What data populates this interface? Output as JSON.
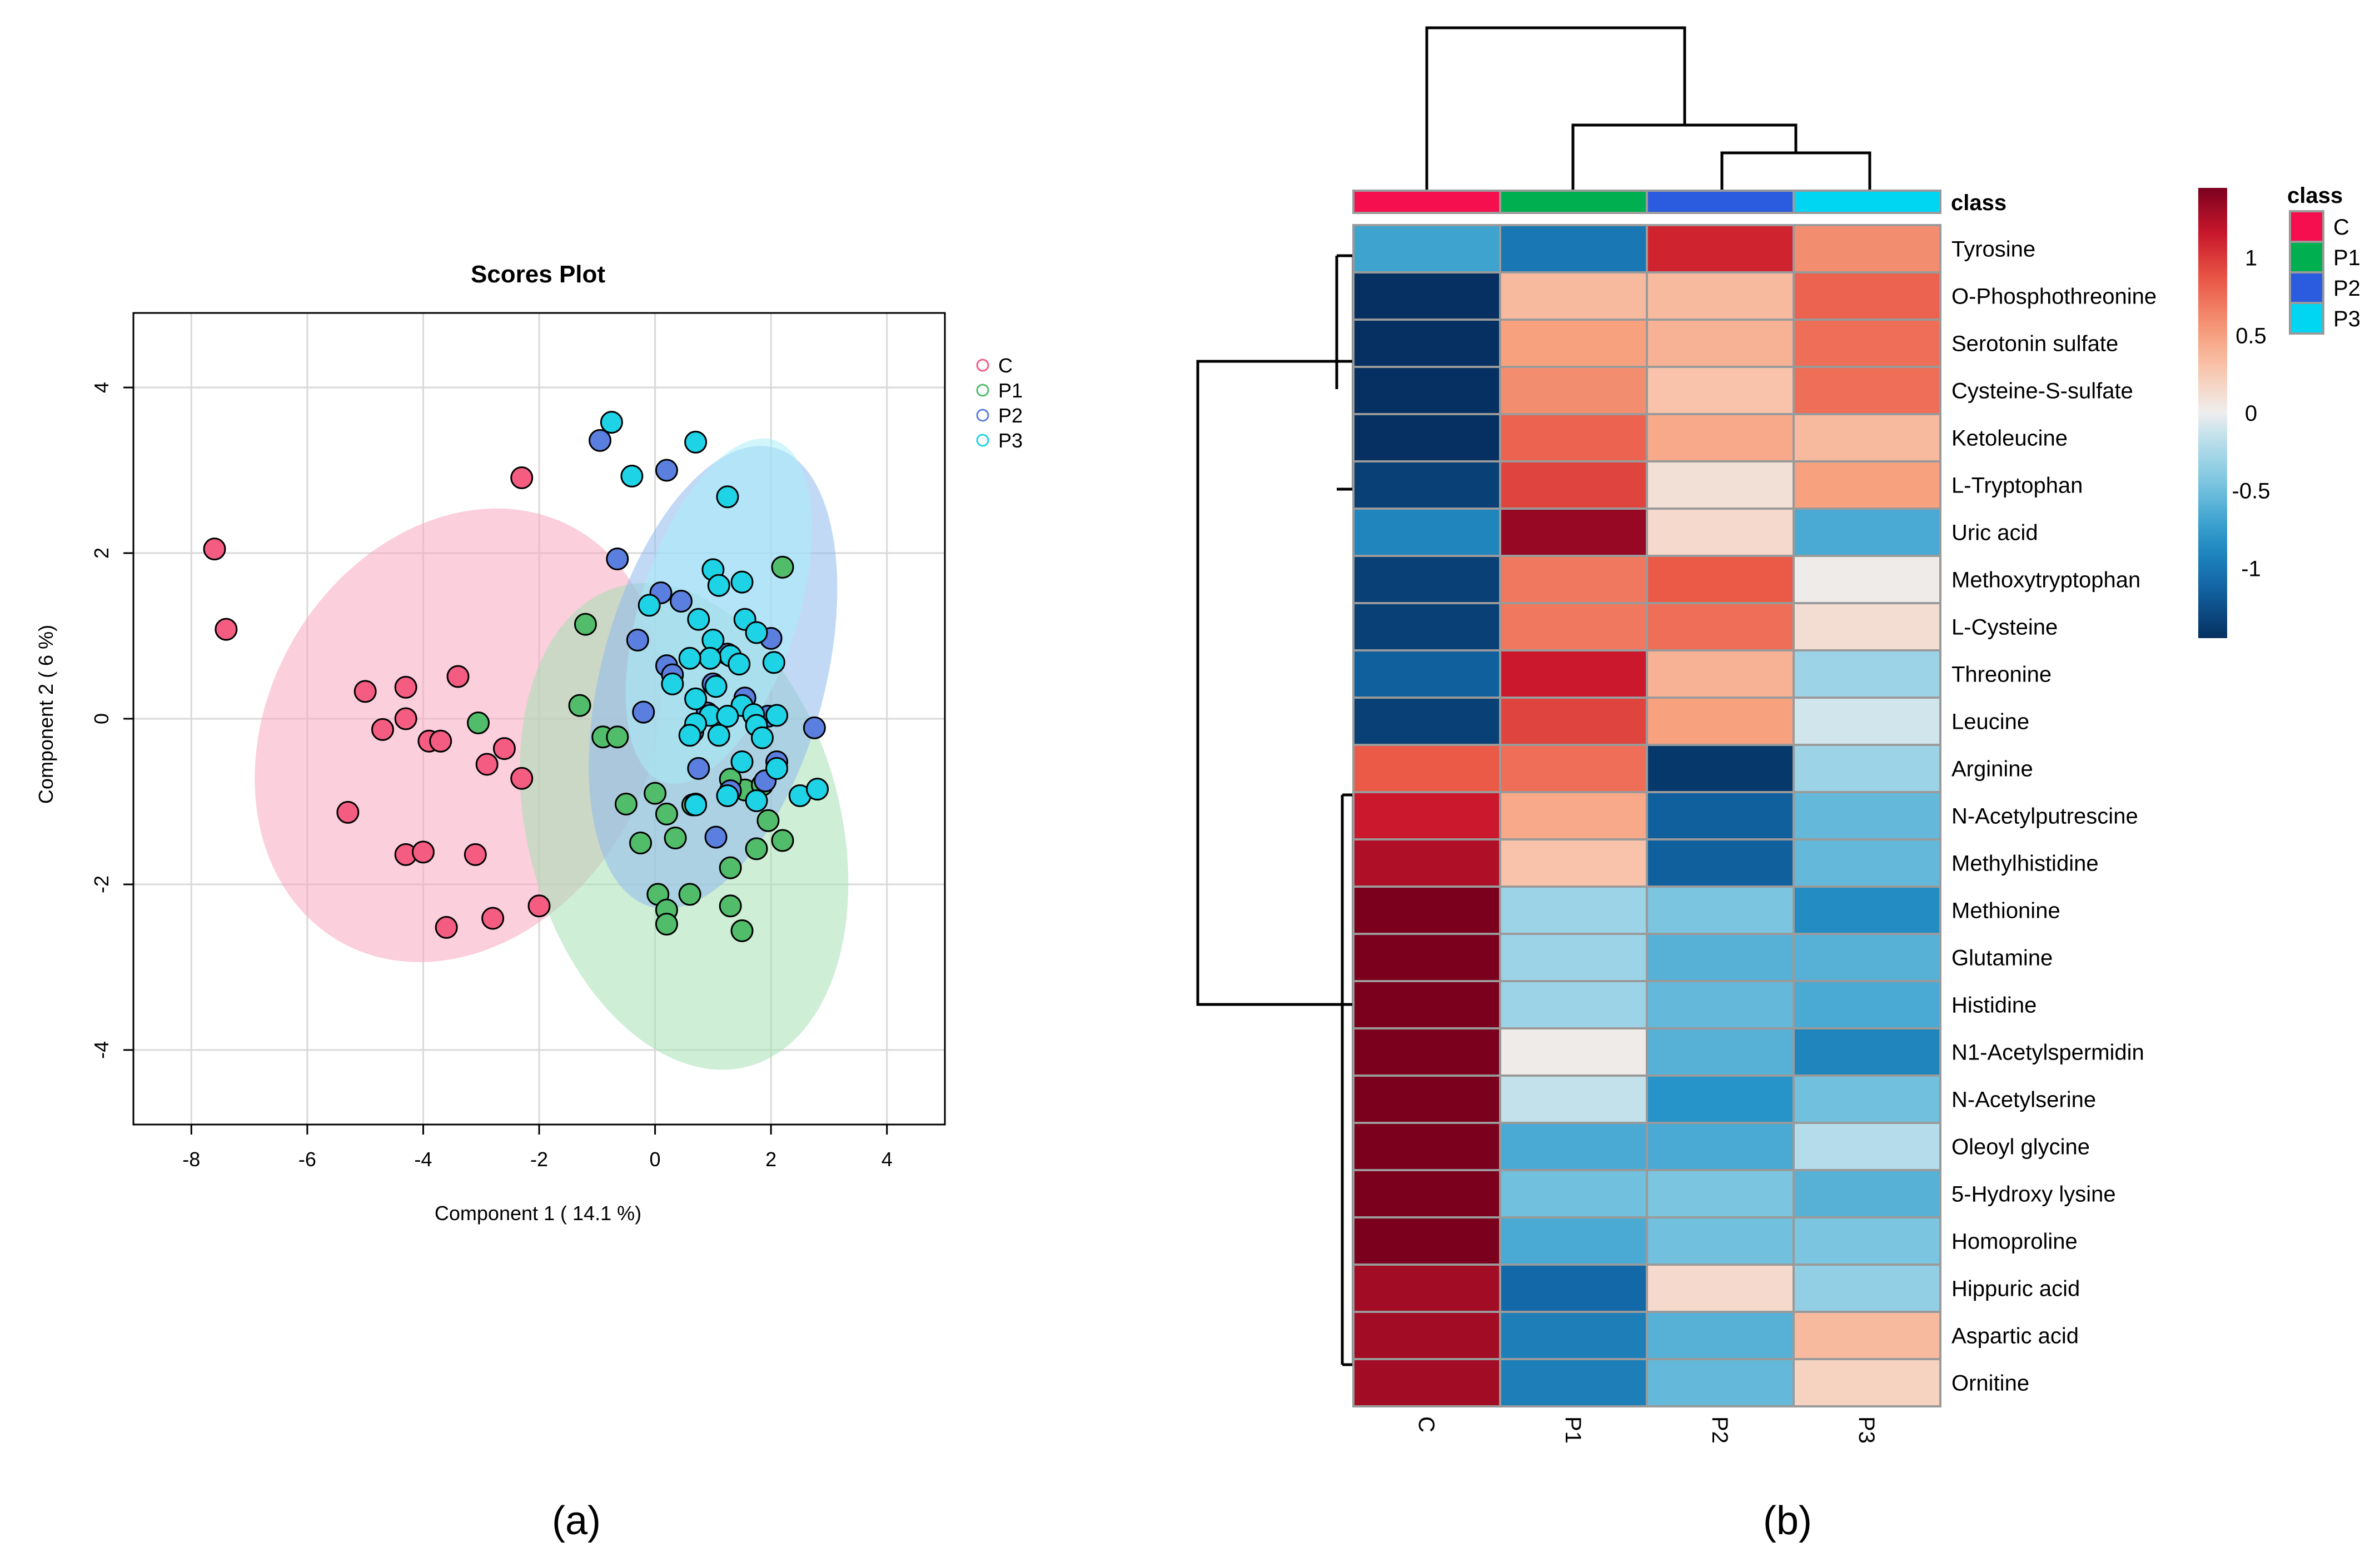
{
  "panel_labels": {
    "a": "(a)",
    "b": "(b)"
  },
  "colors": {
    "C": "#f45d81",
    "P1": "#51bd6b",
    "P2": "#5b7fdf",
    "P3": "#1fd3e6",
    "C_ellipse": "#f7a8bf",
    "P1_ellipse": "#a5e0b4",
    "P2_ellipse": "#8fb9ef",
    "P3_ellipse": "#a9ecf7",
    "class_C": "#f50f4e",
    "class_P1": "#00b050",
    "class_P2": "#2b5ce0",
    "class_P3": "#00d5f2"
  },
  "chart_data": [
    {
      "type": "scatter",
      "title": "Scores Plot",
      "xlabel": "Component 1 ( 14.1 %)",
      "ylabel": "Component 2 ( 6 %)",
      "xlim": [
        -9,
        5
      ],
      "ylim": [
        -4.9,
        4.9
      ],
      "xticks": [
        -8,
        -6,
        -4,
        -2,
        0,
        2,
        4
      ],
      "yticks": [
        -4,
        -2,
        0,
        2,
        4
      ],
      "xtick_labels": [
        "-8",
        "-6",
        "-4",
        "-2",
        "0",
        "2",
        "4"
      ],
      "ytick_labels": [
        "-4",
        "-2",
        "0",
        "2",
        "4"
      ],
      "grid": true,
      "legend_position": "right",
      "legend": [
        "C",
        "P1",
        "P2",
        "P3"
      ],
      "ellipses": [
        {
          "group": "C",
          "cx": -3.4,
          "cy": -0.2,
          "a": 4.1,
          "b": 2.3,
          "angle_deg": -60
        },
        {
          "group": "P1",
          "cx": 0.5,
          "cy": -1.3,
          "a": 2.7,
          "b": 3.0,
          "angle_deg": -15
        },
        {
          "group": "P2",
          "cx": 1.0,
          "cy": 0.5,
          "a": 4.1,
          "b": 1.35,
          "angle_deg": -75
        },
        {
          "group": "P3",
          "cx": 1.1,
          "cy": 1.3,
          "a": 3.1,
          "b": 0.95,
          "angle_deg": -72
        }
      ],
      "series": [
        {
          "name": "C",
          "points": [
            [
              -7.6,
              2.05
            ],
            [
              -7.4,
              1.08
            ],
            [
              -5.0,
              0.33
            ],
            [
              -4.7,
              -0.13
            ],
            [
              -4.3,
              0.38
            ],
            [
              -4.3,
              0.0
            ],
            [
              -3.9,
              -0.27
            ],
            [
              -3.7,
              -0.27
            ],
            [
              -3.4,
              0.51
            ],
            [
              -2.9,
              -0.55
            ],
            [
              -2.6,
              -0.36
            ],
            [
              -2.3,
              -0.72
            ],
            [
              -2.3,
              2.91
            ],
            [
              -5.3,
              -1.13
            ],
            [
              -4.3,
              -1.64
            ],
            [
              -4.0,
              -1.61
            ],
            [
              -3.1,
              -1.64
            ],
            [
              -3.6,
              -2.52
            ],
            [
              -2.8,
              -2.41
            ],
            [
              -2.0,
              -2.26
            ]
          ]
        },
        {
          "name": "P1",
          "points": [
            [
              -3.05,
              -0.05
            ],
            [
              -1.3,
              0.16
            ],
            [
              -1.2,
              1.14
            ],
            [
              -0.9,
              -0.22
            ],
            [
              -0.65,
              -0.22
            ],
            [
              -0.5,
              -1.03
            ],
            [
              -0.25,
              -1.5
            ],
            [
              0.0,
              -0.9
            ],
            [
              0.2,
              -1.15
            ],
            [
              0.35,
              -1.44
            ],
            [
              0.05,
              -2.12
            ],
            [
              0.2,
              -2.31
            ],
            [
              0.2,
              -2.48
            ],
            [
              0.6,
              -2.12
            ],
            [
              1.3,
              -2.26
            ],
            [
              1.5,
              -2.56
            ],
            [
              1.3,
              -1.8
            ],
            [
              1.75,
              -1.57
            ],
            [
              2.2,
              -1.47
            ],
            [
              1.95,
              -1.23
            ],
            [
              1.55,
              -0.86
            ],
            [
              1.3,
              -0.73
            ],
            [
              1.85,
              -0.8
            ],
            [
              0.65,
              -1.04
            ],
            [
              2.2,
              1.83
            ]
          ]
        },
        {
          "name": "P2",
          "points": [
            [
              -0.95,
              3.36
            ],
            [
              0.2,
              3.0
            ],
            [
              -0.65,
              1.93
            ],
            [
              0.1,
              1.52
            ],
            [
              0.45,
              1.42
            ],
            [
              -0.3,
              0.95
            ],
            [
              0.2,
              0.64
            ],
            [
              -0.2,
              0.08
            ],
            [
              0.3,
              0.53
            ],
            [
              0.65,
              -0.16
            ],
            [
              0.9,
              0.07
            ],
            [
              1.0,
              0.42
            ],
            [
              1.25,
              0.78
            ],
            [
              1.55,
              0.25
            ],
            [
              1.95,
              0.03
            ],
            [
              2.0,
              0.97
            ],
            [
              2.75,
              -0.11
            ],
            [
              2.1,
              -0.52
            ],
            [
              1.9,
              -0.75
            ],
            [
              1.3,
              -0.87
            ],
            [
              1.05,
              -1.43
            ],
            [
              0.7,
              -1.03
            ],
            [
              0.75,
              -0.6
            ]
          ]
        },
        {
          "name": "P3",
          "points": [
            [
              -0.75,
              3.58
            ],
            [
              -0.4,
              2.93
            ],
            [
              0.7,
              3.34
            ],
            [
              1.25,
              2.68
            ],
            [
              1.0,
              1.8
            ],
            [
              1.5,
              1.65
            ],
            [
              1.1,
              1.61
            ],
            [
              -0.1,
              1.37
            ],
            [
              0.75,
              1.2
            ],
            [
              1.55,
              1.2
            ],
            [
              1.75,
              1.04
            ],
            [
              1.0,
              0.95
            ],
            [
              1.3,
              0.76
            ],
            [
              2.05,
              0.68
            ],
            [
              1.45,
              0.66
            ],
            [
              0.95,
              0.73
            ],
            [
              0.6,
              0.73
            ],
            [
              0.3,
              0.42
            ],
            [
              1.05,
              0.39
            ],
            [
              1.5,
              0.16
            ],
            [
              0.7,
              0.24
            ],
            [
              0.95,
              0.04
            ],
            [
              0.7,
              -0.06
            ],
            [
              1.25,
              0.03
            ],
            [
              1.7,
              0.05
            ],
            [
              2.1,
              0.04
            ],
            [
              0.6,
              -0.2
            ],
            [
              1.1,
              -0.2
            ],
            [
              1.75,
              -0.08
            ],
            [
              1.85,
              -0.23
            ],
            [
              2.1,
              -0.6
            ],
            [
              2.5,
              -0.93
            ],
            [
              2.8,
              -0.85
            ],
            [
              1.75,
              -0.99
            ],
            [
              1.25,
              -0.93
            ],
            [
              0.7,
              -1.04
            ],
            [
              1.5,
              -0.52
            ]
          ]
        }
      ]
    },
    {
      "type": "heatmap",
      "legend_title": "class",
      "class_labels": [
        "C",
        "P1",
        "P2",
        "P3"
      ],
      "columns": [
        "C",
        "P1",
        "P2",
        "P3"
      ],
      "colorbar_ticks": [
        1,
        0.5,
        0,
        -0.5,
        -1
      ],
      "colorbar_tick_labels": [
        "1",
        "0.5",
        "0",
        "-0.5",
        "-1"
      ],
      "colorbar_range": [
        -1.45,
        1.45
      ],
      "rows": [
        "Tyrosine",
        "O-Phosphothreonine",
        "Serotonin sulfate",
        "Cysteine-S-sulfate",
        "Ketoleucine",
        "L-Tryptophan",
        "Uric acid",
        "Methoxytryptophan",
        "L-Cysteine",
        "Threonine",
        "Leucine",
        "Arginine",
        "N-Acetylputrescine",
        "Methylhistidine",
        "Methionine",
        "Glutamine",
        "Histidine",
        "N1-Acetylspermidin",
        "N-Acetylserine",
        "Oleoyl glycine",
        "5-Hydroxy lysine",
        "Homoproline",
        "Hippuric acid",
        "Aspartic acid",
        "Ornitine"
      ],
      "values": [
        [
          -0.7,
          -1.0,
          1.1,
          0.6
        ],
        [
          -1.45,
          0.35,
          0.35,
          0.8
        ],
        [
          -1.45,
          0.5,
          0.4,
          0.75
        ],
        [
          -1.45,
          0.6,
          0.3,
          0.75
        ],
        [
          -1.45,
          0.8,
          0.45,
          0.35
        ],
        [
          -1.35,
          0.95,
          0.1,
          0.5
        ],
        [
          -0.9,
          1.35,
          0.15,
          -0.65
        ],
        [
          -1.35,
          0.7,
          0.85,
          0.02
        ],
        [
          -1.35,
          0.7,
          0.75,
          0.12
        ],
        [
          -1.15,
          1.15,
          0.4,
          -0.3
        ],
        [
          -1.35,
          0.95,
          0.5,
          -0.1
        ],
        [
          0.85,
          0.75,
          -1.4,
          -0.3
        ],
        [
          1.15,
          0.45,
          -1.15,
          -0.55
        ],
        [
          1.25,
          0.3,
          -1.15,
          -0.55
        ],
        [
          1.45,
          -0.3,
          -0.45,
          -0.85
        ],
        [
          1.45,
          -0.3,
          -0.6,
          -0.6
        ],
        [
          1.45,
          -0.3,
          -0.55,
          -0.65
        ],
        [
          1.45,
          0.02,
          -0.6,
          -0.9
        ],
        [
          1.45,
          -0.15,
          -0.8,
          -0.5
        ],
        [
          1.45,
          -0.65,
          -0.65,
          -0.2
        ],
        [
          1.45,
          -0.5,
          -0.45,
          -0.6
        ],
        [
          1.45,
          -0.65,
          -0.5,
          -0.45
        ],
        [
          1.3,
          -1.1,
          0.15,
          -0.35
        ],
        [
          1.3,
          -0.95,
          -0.6,
          0.35
        ],
        [
          1.3,
          -0.95,
          -0.55,
          0.2
        ]
      ],
      "column_dendrogram": "((C),((P1),((P2),(P3))))",
      "row_dendrogram": "two main clusters: rows Tyrosine–Leucine and rows Arginine–Ornitine"
    }
  ]
}
